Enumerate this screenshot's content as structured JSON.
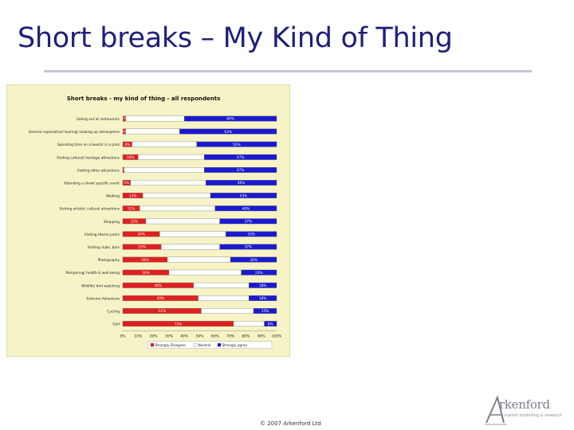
{
  "slide": {
    "title": "Short breaks – My Kind of Thing",
    "footer": "© 2007 Arkenford Ltd"
  },
  "logo": {
    "wordmark": "rkenford",
    "tagline": "market modelling & research"
  },
  "colors": {
    "disagree": "#e02020",
    "neutral": "#ffffff",
    "agree": "#1a1ad0",
    "panel": "#f6f4c6",
    "title": "#1f1f7a"
  },
  "chart_data": {
    "type": "bar",
    "orientation": "horizontal-stacked-100",
    "title": "Short breaks - my kind of thing - all respondents",
    "categories": [
      "Eating out at restaurants",
      "General exploration/ touring/ soaking up atmosphere",
      "Spending time on a beach/ in a park",
      "Visiting cultural/ heritage attractions",
      "Visiting other attractions",
      "Attending a show/ specific event",
      "Walking",
      "Visiting artistic/ cultural attractions",
      "Shopping",
      "Visiting theme parks",
      "Visiting clubs, bars",
      "Photography",
      "Pampering/ health & well-being",
      "Wildlife/ bird watching",
      "Extreme Adventure",
      "Cycling",
      "Golf"
    ],
    "series": [
      {
        "name": "Strongly Disagree",
        "values": [
          2,
          2,
          6,
          10,
          1,
          5,
          13,
          11,
          15,
          24,
          25,
          29,
          30,
          46,
          49,
          51,
          72
        ]
      },
      {
        "name": "Neutral",
        "values": [
          38,
          35,
          42,
          43,
          52,
          49,
          44,
          49,
          48,
          43,
          38,
          41,
          47,
          36,
          33,
          34,
          20
        ]
      },
      {
        "name": "Strongly agree",
        "values": [
          60,
          63,
          52,
          47,
          47,
          46,
          43,
          40,
          37,
          33,
          37,
          30,
          23,
          18,
          18,
          15,
          8
        ]
      }
    ],
    "value_labels": {
      "Strongly Disagree": [
        "2%",
        "2%",
        "6%",
        "10%",
        "1%",
        "5%",
        "13%",
        "11%",
        "15%",
        "24%",
        "25%",
        "29%",
        "30%",
        "46%",
        "49%",
        "51%",
        "72%"
      ],
      "Strongly agree": [
        "60%",
        "63%",
        "52%",
        "47%",
        "47%",
        "46%",
        "43%",
        "40%",
        "37%",
        "33%",
        "37%",
        "30%",
        "23%",
        "18%",
        "18%",
        "15%",
        "8%"
      ]
    },
    "x_ticks": [
      "0%",
      "10%",
      "20%",
      "30%",
      "40%",
      "50%",
      "60%",
      "70%",
      "80%",
      "90%",
      "100%"
    ],
    "xlim": [
      0,
      100
    ],
    "legend": [
      "Strongly Disagree",
      "Neutral",
      "Strongly agree"
    ],
    "legend_position": "bottom",
    "grid": false
  }
}
